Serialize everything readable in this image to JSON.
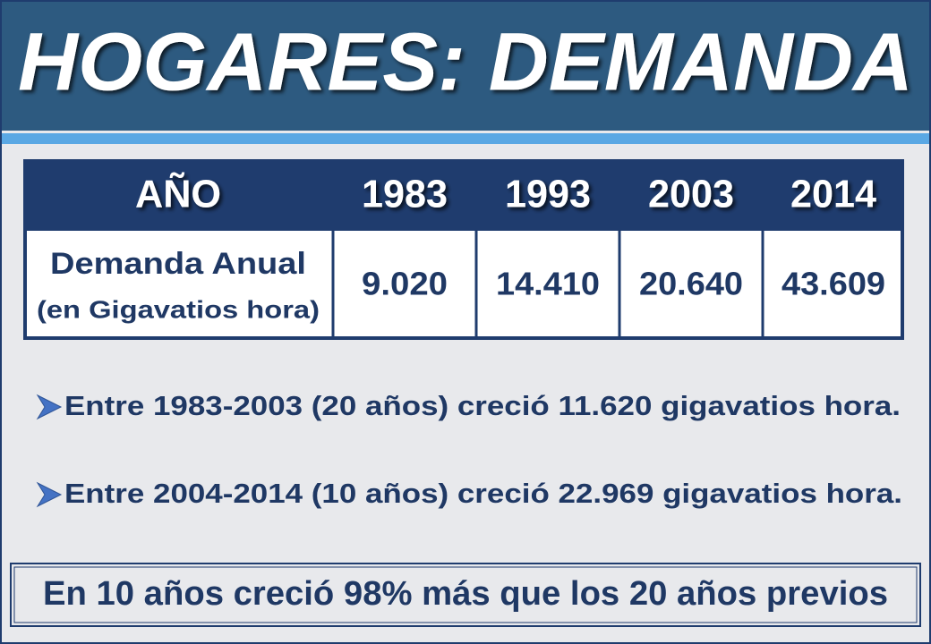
{
  "header": {
    "title": "HOGARES: DEMANDA"
  },
  "table": {
    "columns": [
      "AÑO",
      "1983",
      "1993",
      "2003",
      "2014"
    ],
    "rows": [
      {
        "label": "Demanda Anual",
        "sublabel": "(en Gigavatios hora)",
        "values": [
          "9.020",
          "14.410",
          "20.640",
          "43.609"
        ]
      }
    ]
  },
  "bullets": [
    "Entre 1983-2003 (20 años) creció 11.620 gigavatios hora.",
    "Entre 2004-2014 (10 años) creció 22.969 gigavatios hora."
  ],
  "conclusion": "En 10 años creció 98% más que los 20 años previos"
}
